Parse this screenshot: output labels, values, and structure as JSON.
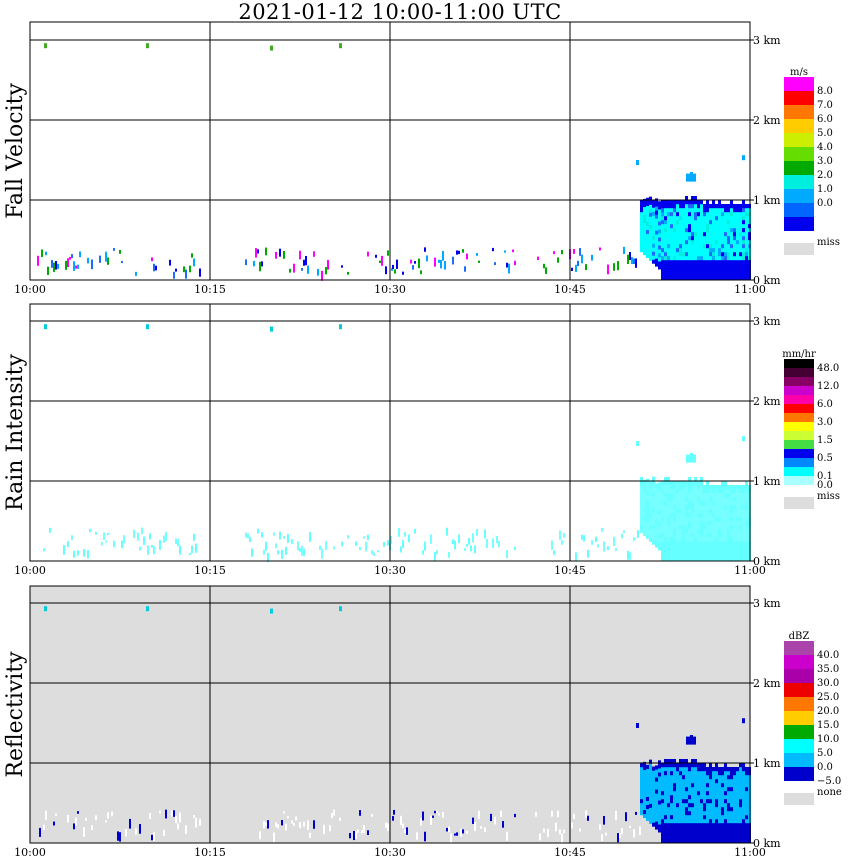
{
  "title": "2021-01-12   10:00-11:00 UTC",
  "chart_data": [
    {
      "type": "heatmap",
      "panel_label": "Fall Velocity",
      "background": "#ffffff",
      "x_ticks": [
        "10:00",
        "10:15",
        "10:30",
        "10:45",
        "11:00"
      ],
      "y_ticks": [
        "0 km",
        "1 km",
        "2 km",
        "3 km"
      ],
      "ylim": [
        0,
        3.1
      ],
      "grid": true,
      "colorbar": {
        "unit": "m/s",
        "labels": [
          "8.0",
          "7.0",
          "6.0",
          "5.0",
          "4.0",
          "3.0",
          "2.0",
          "1.0",
          "0.0"
        ],
        "colors": [
          "#ff00ff",
          "#ff0000",
          "#ff7700",
          "#ffcc00",
          "#ccee00",
          "#66dd00",
          "#00aa00",
          "#00eedd",
          "#00aaff",
          "#0066ff",
          "#0000ee"
        ],
        "miss_label": "miss",
        "miss_color": "#dddddd"
      },
      "echo": {
        "scatter_colors": [
          "#0000ee",
          "#1e6bff",
          "#00aaff",
          "#ff00ff",
          "#00aa00"
        ],
        "main_colors": [
          "#00ffff",
          "#00eedd",
          "#00aaff",
          "#1e6bff",
          "#0000ee"
        ]
      }
    },
    {
      "type": "heatmap",
      "panel_label": "Rain Intensity",
      "background": "#ffffff",
      "x_ticks": [
        "10:00",
        "10:15",
        "10:30",
        "10:45",
        "11:00"
      ],
      "y_ticks": [
        "0 km",
        "1 km",
        "2 km",
        "3 km"
      ],
      "ylim": [
        0,
        3.1
      ],
      "grid": true,
      "colorbar": {
        "unit": "mm/hr",
        "labels": [
          "48.0",
          "12.0",
          "6.0",
          "3.0",
          "1.5",
          "0.5",
          "0.1",
          "0.0"
        ],
        "label_pos": [
          0,
          2,
          4,
          6,
          8,
          10,
          12,
          13
        ],
        "colors": [
          "#000000",
          "#440033",
          "#880066",
          "#cc00cc",
          "#ff00aa",
          "#ff0000",
          "#ff7700",
          "#ffff00",
          "#ccff33",
          "#44dd44",
          "#0000ee",
          "#0088ff",
          "#00ffff",
          "#aaffff"
        ],
        "miss_label": "miss",
        "miss_color": "#dddddd"
      },
      "echo": {
        "scatter_colors": [
          "#66ffff",
          "#77ffff"
        ],
        "main_colors": [
          "#77ffff",
          "#66ffff"
        ]
      }
    },
    {
      "type": "heatmap",
      "panel_label": "Reflectivity",
      "background": "#dddddd",
      "x_ticks": [
        "10:00",
        "10:15",
        "10:30",
        "10:45",
        "11:00"
      ],
      "y_ticks": [
        "0 km",
        "1 km",
        "2 km",
        "3 km"
      ],
      "ylim": [
        0,
        3.1
      ],
      "grid": true,
      "colorbar": {
        "unit": "dBZ",
        "labels": [
          "40.0",
          "35.0",
          "30.0",
          "25.0",
          "20.0",
          "15.0",
          "10.0",
          "5.0",
          "0.0",
          "−5.0"
        ],
        "colors": [
          "#aa44aa",
          "#cc00cc",
          "#aa00aa",
          "#ee0000",
          "#ff7700",
          "#ffcc00",
          "#00aa00",
          "#00ffff",
          "#00bbff",
          "#0000cc"
        ],
        "miss_label": "none",
        "miss_color": "#dddddd"
      },
      "echo": {
        "scatter_colors": [
          "#ffffff",
          "#ffffff",
          "#ffffff",
          "#0000cc"
        ],
        "main_colors": [
          "#00bbff",
          "#00bbff",
          "#0000cc"
        ]
      }
    }
  ]
}
